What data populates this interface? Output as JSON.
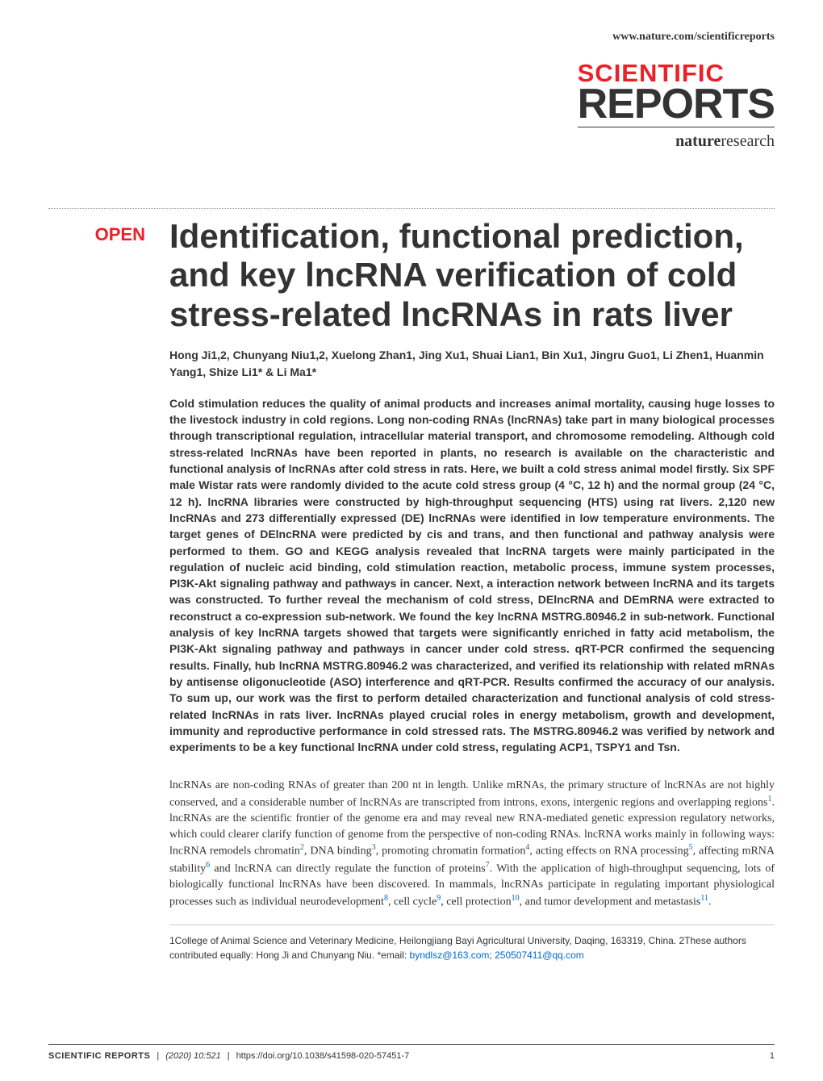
{
  "header": {
    "url": "www.nature.com/scientificreports"
  },
  "logo": {
    "scientific": "SCIENTIFIC",
    "reports": "REPORTS",
    "nature": "nature",
    "research": "research"
  },
  "article": {
    "open_badge": "OPEN",
    "title": "Identification, functional prediction, and key lncRNA verification of cold stress-related lncRNAs in rats liver",
    "authors": "Hong Ji1,2, Chunyang Niu1,2, Xuelong Zhan1, Jing Xu1, Shuai Lian1, Bin Xu1, Jingru Guo1, Li Zhen1, Huanmin Yang1, Shize Li1* & Li Ma1*",
    "abstract": "Cold stimulation reduces the quality of animal products and increases animal mortality, causing huge losses to the livestock industry in cold regions. Long non-coding RNAs (lncRNAs) take part in many biological processes through transcriptional regulation, intracellular material transport, and chromosome remodeling. Although cold stress-related lncRNAs have been reported in plants, no research is available on the characteristic and functional analysis of lncRNAs after cold stress in rats. Here, we built a cold stress animal model firstly. Six SPF male Wistar rats were randomly divided to the acute cold stress group (4 °C, 12 h) and the normal group (24 °C, 12 h). lncRNA libraries were constructed by high-throughput sequencing (HTS) using rat livers. 2,120 new lncRNAs and 273 differentially expressed (DE) lncRNAs were identified in low temperature environments. The target genes of DElncRNA were predicted by cis and trans, and then functional and pathway analysis were performed to them. GO and KEGG analysis revealed that lncRNA targets were mainly participated in the regulation of nucleic acid binding, cold stimulation reaction, metabolic process, immune system processes, PI3K-Akt signaling pathway and pathways in cancer. Next, a interaction network between lncRNA and its targets was constructed. To further reveal the mechanism of cold stress, DElncRNA and DEmRNA were extracted to reconstruct a co-expression sub-network. We found the key lncRNA MSTRG.80946.2 in sub-network. Functional analysis of key lncRNA targets showed that targets were significantly enriched in fatty acid metabolism, the PI3K-Akt signaling pathway and pathways in cancer under cold stress. qRT-PCR confirmed the sequencing results. Finally, hub lncRNA MSTRG.80946.2 was characterized, and verified its relationship with related mRNAs by antisense oligonucleotide (ASO) interference and qRT-PCR. Results confirmed the accuracy of our analysis. To sum up, our work was the first to perform detailed characterization and functional analysis of cold stress-related lncRNAs in rats liver. lncRNAs played crucial roles in energy metabolism, growth and development, immunity and reproductive performance in cold stressed rats. The MSTRG.80946.2 was verified by network and experiments to be a key functional lncRNA under cold stress, regulating ACP1, TSPY1 and Tsn.",
    "body_p1_a": "lncRNAs are non-coding RNAs of greater than 200 nt in length. Unlike mRNAs, the primary structure of lncRNAs are not highly conserved, and a considerable number of lncRNAs are transcripted from introns, exons, intergenic regions and overlapping regions",
    "body_p1_b": ". lncRNAs are the scientific frontier of the genome era and may reveal new RNA-mediated genetic expression regulatory networks, which could clearer clarify function of genome from the perspective of non-coding RNAs. lncRNA works mainly in following ways: lncRNA remodels chromatin",
    "body_p1_c": ", DNA binding",
    "body_p1_d": ", promoting chromatin formation",
    "body_p1_e": ", acting effects on RNA processing",
    "body_p1_f": ", affecting mRNA stability",
    "body_p1_g": " and lncRNA can directly regulate the function of proteins",
    "body_p1_h": ". With the application of high-throughput sequencing, lots of biologically functional lncRNAs have been discovered. In mammals, lncRNAs participate in regulating important physiological processes such as individual neurodevelopment",
    "body_p1_i": ", cell cycle",
    "body_p1_j": ", cell protection",
    "body_p1_k": ", and tumor development and metastasis",
    "body_p1_l": ".",
    "refs": {
      "r1": "1",
      "r2": "2",
      "r3": "3",
      "r4": "4",
      "r5": "5",
      "r6": "6",
      "r7": "7",
      "r8": "8",
      "r9": "9",
      "r10": "10",
      "r11": "11"
    },
    "affiliations_a": "1College of Animal Science and Veterinary Medicine, Heilongjiang Bayi Agricultural University, Daqing, 163319, China. 2These authors contributed equally: Hong Ji and Chunyang Niu. *email: ",
    "email1": "byndlsz@163.com",
    "affiliations_sep": "; ",
    "email2": "250507411@qq.com"
  },
  "footer": {
    "journal": "SCIENTIFIC REPORTS",
    "citation": "(2020) 10:521",
    "doi": "https://doi.org/10.1038/s41598-020-57451-7",
    "page": "1"
  },
  "colors": {
    "accent": "#ec2127",
    "link": "#0066cc",
    "text": "#333333",
    "background": "#ffffff"
  }
}
